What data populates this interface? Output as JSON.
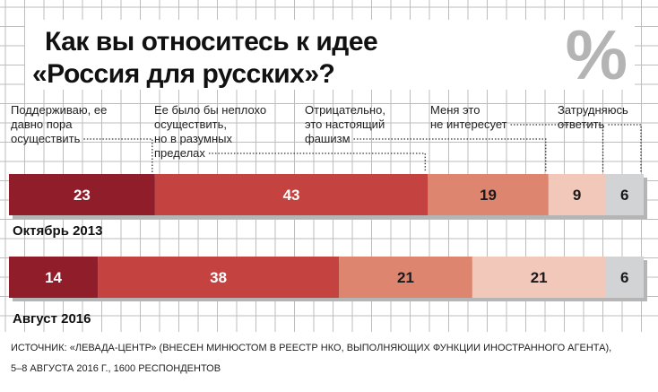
{
  "title_lines": [
    "Как вы относитесь к идее",
    "«Россия для русских»?"
  ],
  "percent_symbol": "%",
  "source_lines": [
    "ИСТОЧНИК: «ЛЕВАДА-ЦЕНТР» (ВНЕСЕН МИНЮСТОМ В РЕЕСТР НКО, ВЫПОЛНЯЮЩИХ ФУНКЦИИ ИНОСТРАННОГО АГЕНТА),",
    "5–8 АВГУСТА 2016 Г., 1600 РЕСПОНДЕНТОВ"
  ],
  "colors": {
    "grid_line": "#bdbdbd",
    "bar_shadow": "#b5b5b5",
    "category_fills": [
      "#8f1d2a",
      "#c4423f",
      "#de8570",
      "#f2c8bb",
      "#d2d3d5"
    ],
    "value_text": [
      "#ffffff",
      "#ffffff",
      "#1a1a1a",
      "#1a1a1a",
      "#1a1a1a"
    ]
  },
  "chart_data": {
    "type": "bar",
    "orientation": "horizontal",
    "stacked": true,
    "xlim": [
      0,
      100
    ],
    "title": "Как вы относитесь к идее «Россия для русских»?",
    "categories": [
      "Октябрь 2013",
      "Август 2016"
    ],
    "series": [
      {
        "name": "Поддерживаю, ее давно пора осуществить",
        "label_lines": [
          "Поддерживаю, ее",
          "давно пора",
          "осуществить"
        ],
        "values": [
          23,
          14
        ]
      },
      {
        "name": "Ее было бы неплохо осуществить, но в разумных пределах",
        "label_lines": [
          "Ее было бы неплохо",
          "осуществить,",
          "но в разумных",
          "пределах"
        ],
        "values": [
          43,
          38
        ]
      },
      {
        "name": "Отрицательно, это настоящий фашизм",
        "label_lines": [
          "Отрицательно,",
          "это настоящий",
          "фашизм"
        ],
        "values": [
          19,
          21
        ]
      },
      {
        "name": "Меня это не интересует",
        "label_lines": [
          "Меня это",
          "не интересует"
        ],
        "values": [
          9,
          21
        ]
      },
      {
        "name": "Затрудняюсь ответить",
        "label_lines": [
          "Затрудняюсь",
          "ответить"
        ],
        "values": [
          6,
          6
        ]
      }
    ]
  }
}
